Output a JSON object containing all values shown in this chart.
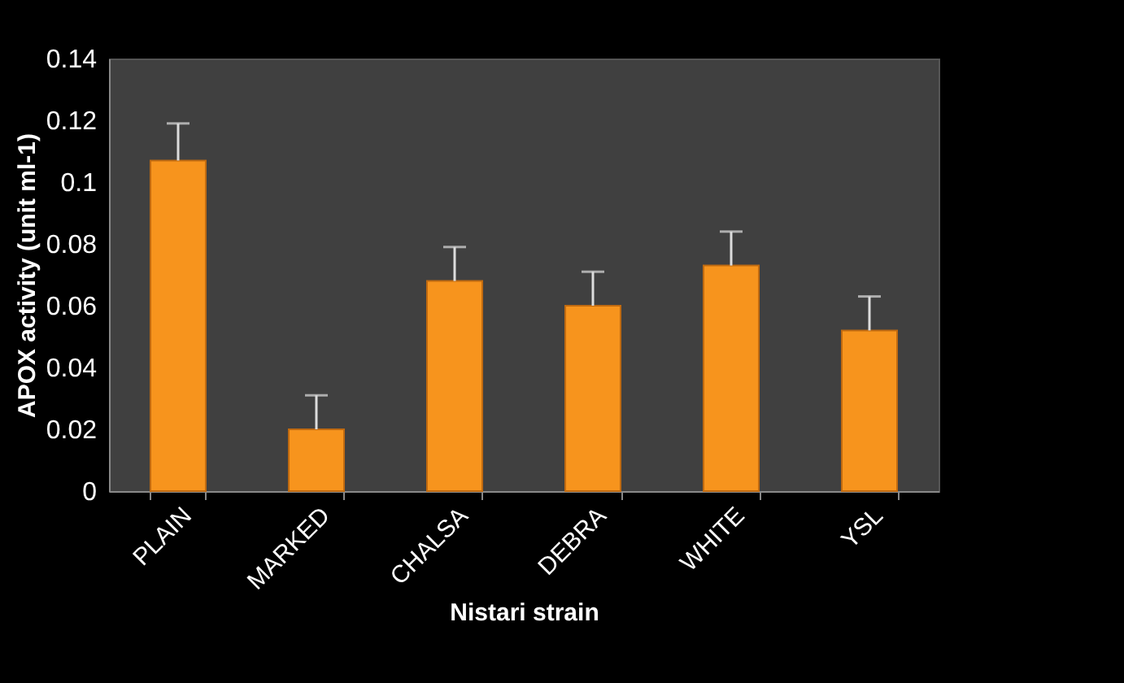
{
  "chart_data": {
    "type": "bar",
    "xlabel": "Nistari strain",
    "ylabel": "APOX activity (unit ml-1)",
    "categories": [
      "PLAIN",
      "MARKED",
      "CHALSA",
      "DEBRA",
      "WHITE",
      "YSL"
    ],
    "values": [
      0.107,
      0.02,
      0.068,
      0.06,
      0.073,
      0.052
    ],
    "errors": [
      [
        0.107,
        0.119
      ],
      [
        0.02,
        0.031
      ],
      [
        0.068,
        0.079
      ],
      [
        0.06,
        0.071
      ],
      [
        0.073,
        0.084
      ],
      [
        0.052,
        0.063
      ]
    ],
    "color": "#f7941d",
    "ylim": [
      0,
      0.14
    ],
    "yticks": [
      0,
      0.02,
      0.04,
      0.06,
      0.08,
      0.1,
      0.12,
      0.14
    ],
    "grid": false
  }
}
